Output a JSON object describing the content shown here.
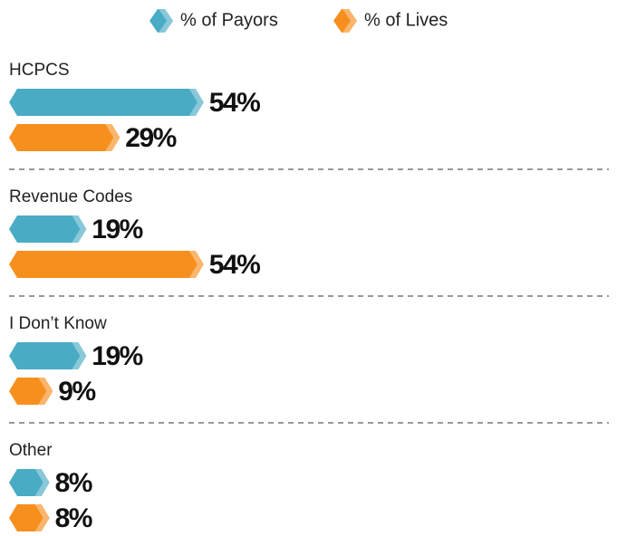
{
  "chart_data": {
    "type": "bar",
    "categories": [
      "HCPCS",
      "Revenue Codes",
      "I Don’t Know",
      "Other"
    ],
    "series": [
      {
        "name": "% of Payors",
        "color": "#4aabc4",
        "values": [
          54,
          19,
          19,
          8
        ],
        "value_labels": [
          "54%",
          "19%",
          "19%",
          "8%"
        ]
      },
      {
        "name": "% of Lives",
        "color": "#f78f1e",
        "values": [
          29,
          54,
          9,
          8
        ],
        "value_labels": [
          "29%",
          "54%",
          "9%",
          "8%"
        ]
      }
    ]
  }
}
